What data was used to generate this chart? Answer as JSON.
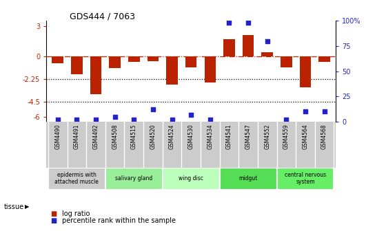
{
  "title": "GDS444 / 7063",
  "samples": [
    "GSM4490",
    "GSM4491",
    "GSM4492",
    "GSM4508",
    "GSM4515",
    "GSM4520",
    "GSM4524",
    "GSM4530",
    "GSM4534",
    "GSM4541",
    "GSM4547",
    "GSM4552",
    "GSM4559",
    "GSM4564",
    "GSM4568"
  ],
  "log_ratio": [
    -0.7,
    -1.8,
    -3.8,
    -1.2,
    -0.6,
    -0.5,
    -2.8,
    -1.1,
    -2.6,
    1.7,
    2.1,
    0.4,
    -1.1,
    -3.1,
    -0.6
  ],
  "percentile": [
    2,
    2,
    2,
    5,
    2,
    12,
    2,
    7,
    2,
    98,
    98,
    80,
    2,
    10,
    10
  ],
  "tissue_groups": [
    {
      "label": "epidermis with\nattached muscle",
      "start": 0,
      "end": 3,
      "color": "#cccccc"
    },
    {
      "label": "salivary gland",
      "start": 3,
      "end": 6,
      "color": "#99ee99"
    },
    {
      "label": "wing disc",
      "start": 6,
      "end": 9,
      "color": "#bbffbb"
    },
    {
      "label": "midgut",
      "start": 9,
      "end": 12,
      "color": "#55dd55"
    },
    {
      "label": "central nervous\nsystem",
      "start": 12,
      "end": 15,
      "color": "#66ee66"
    }
  ],
  "bar_color": "#bb2200",
  "dot_color": "#2222cc",
  "ylim_left": [
    -6.5,
    3.5
  ],
  "ylim_right": [
    0,
    100
  ],
  "yticks_left": [
    -6,
    -4.5,
    -2.25,
    0,
    3
  ],
  "yticks_right": [
    0,
    25,
    50,
    75,
    100
  ],
  "hlines": [
    {
      "y": 0.0,
      "color": "#bb2200",
      "ls": "dashdot",
      "lw": 0.9
    },
    {
      "y": -2.25,
      "color": "black",
      "ls": "dotted",
      "lw": 0.9
    },
    {
      "y": -4.5,
      "color": "black",
      "ls": "dotted",
      "lw": 0.9
    }
  ],
  "legend_log_label": "log ratio",
  "legend_pct_label": "percentile rank within the sample",
  "tissue_label": "tissue",
  "bar_width": 0.6,
  "sample_box_color": "#cccccc",
  "fig_bg": "#ffffff"
}
